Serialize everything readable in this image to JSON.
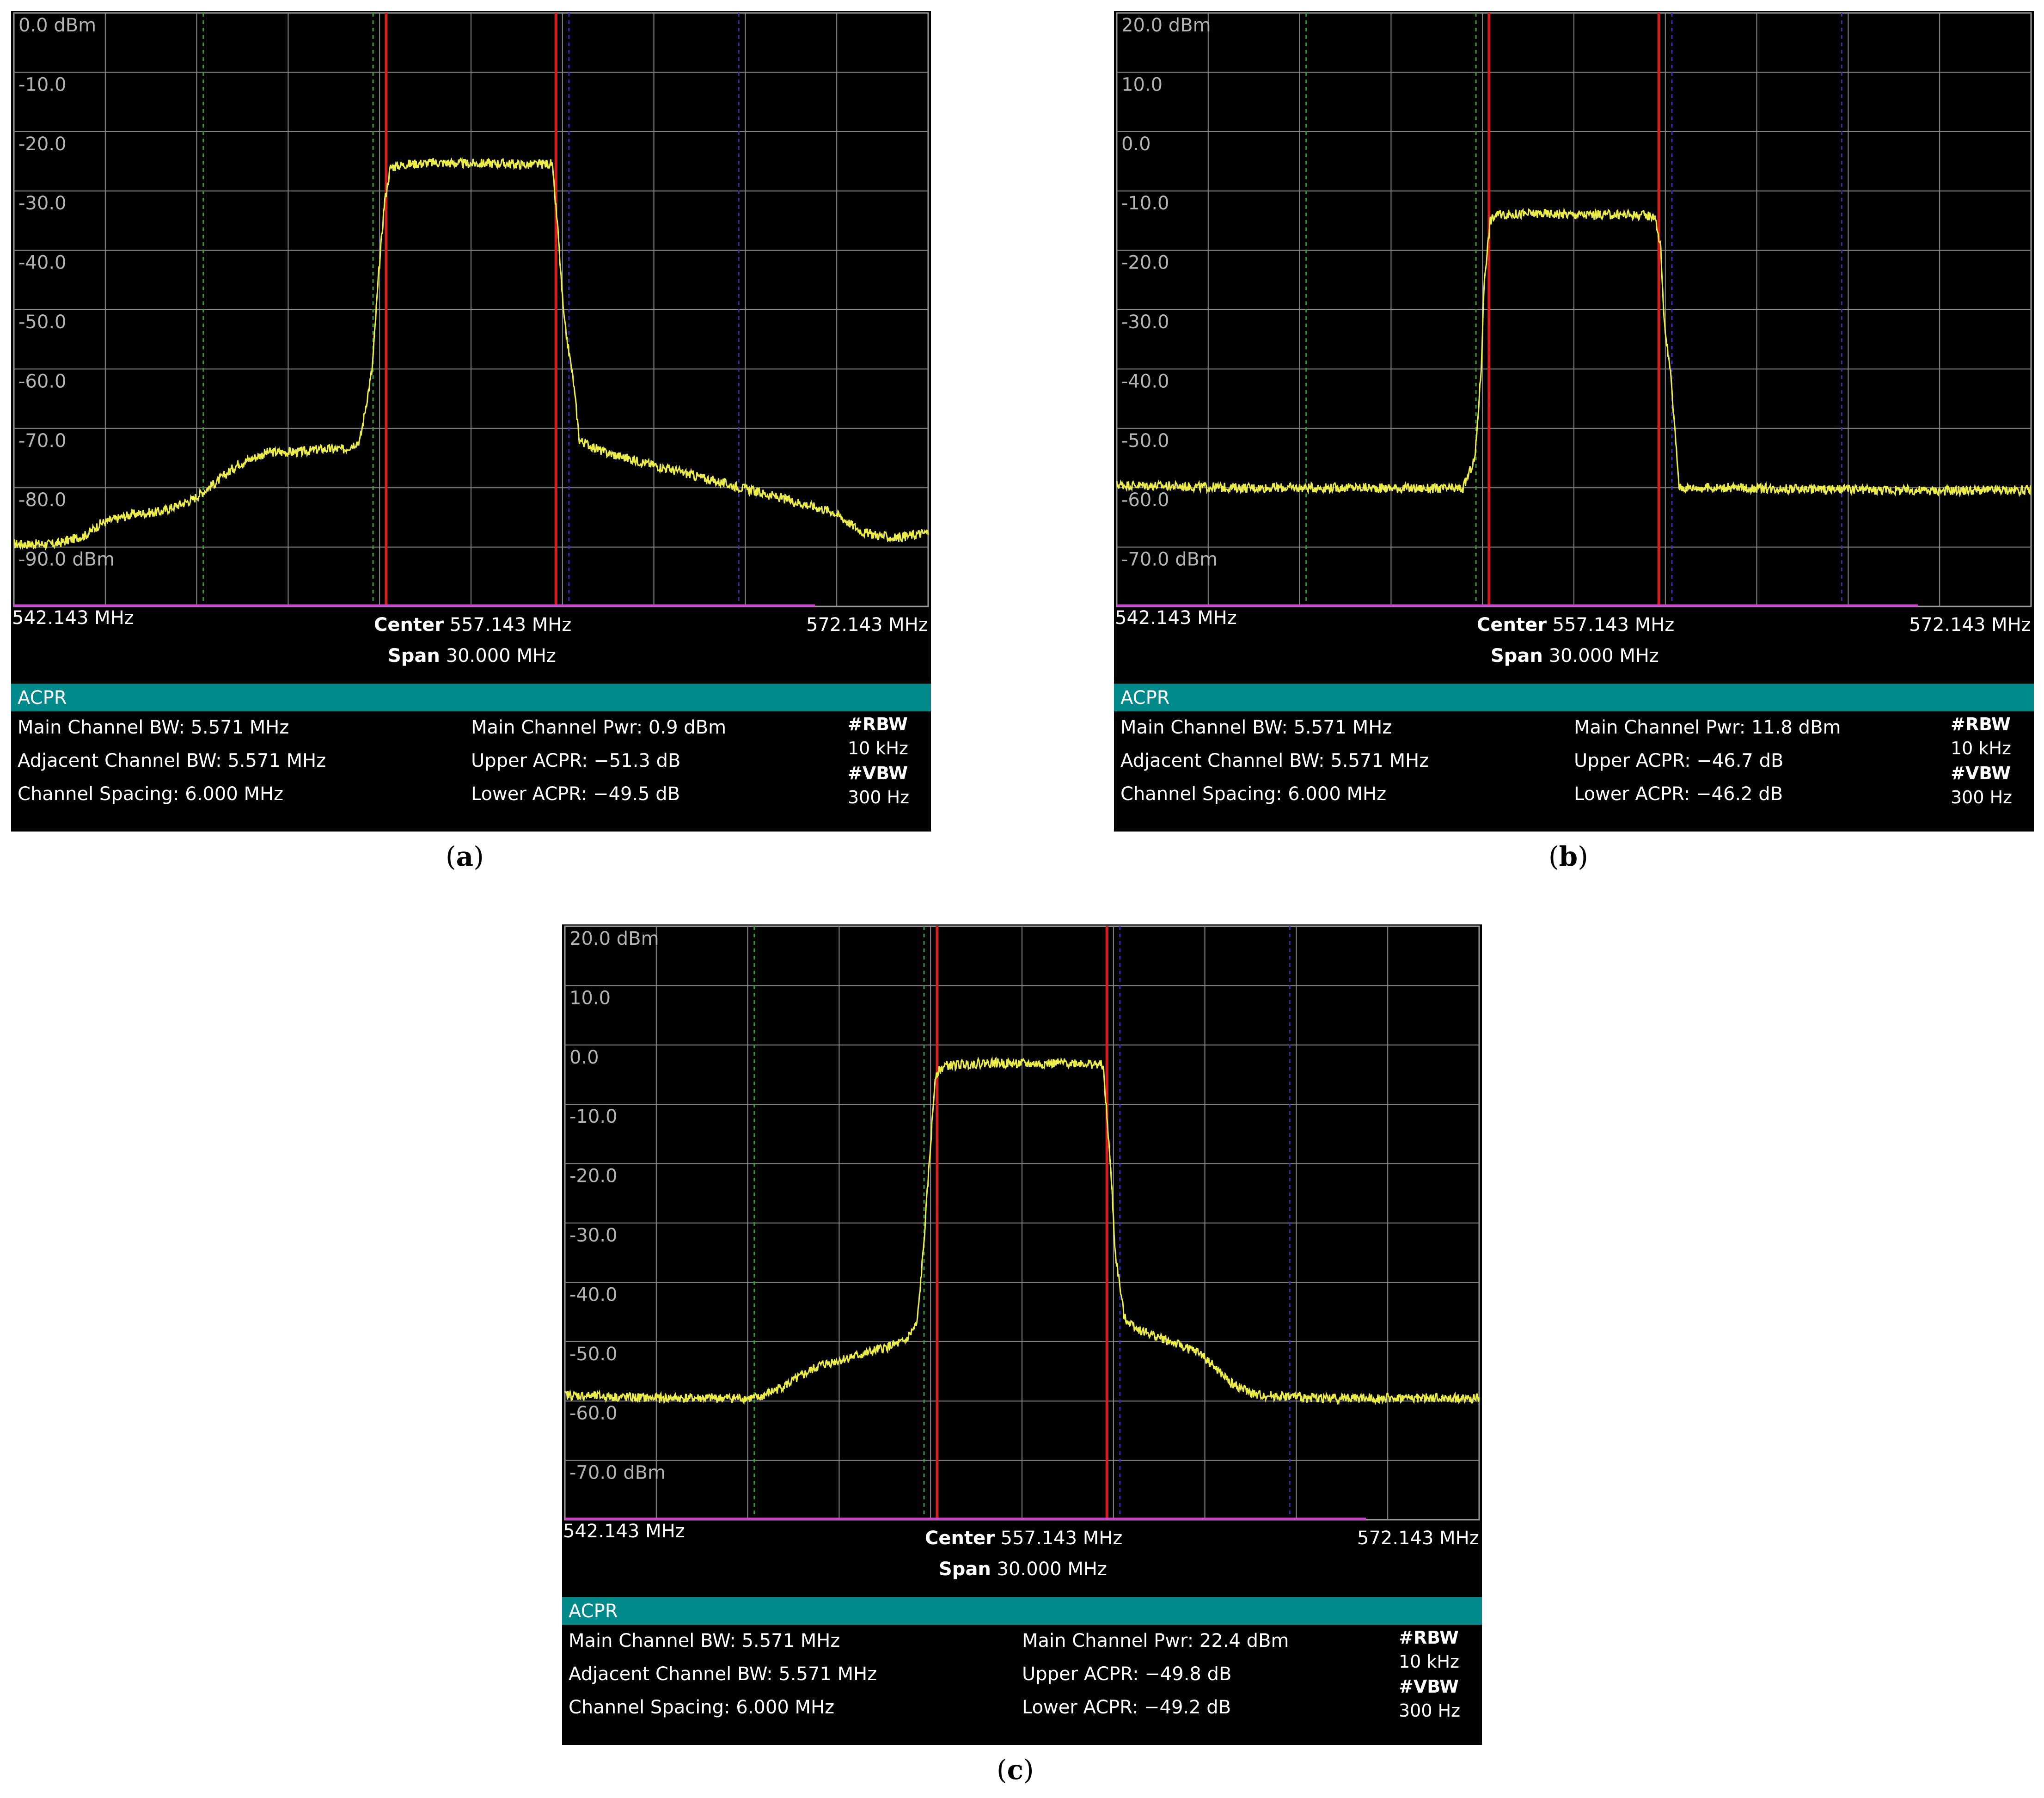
{
  "chart_data": [
    {
      "id": "a",
      "type": "line",
      "caption": "a",
      "ylabels": [
        "0.0 dBm",
        "-10.0",
        "-20.0",
        "-30.0",
        "-40.0",
        "-50.0",
        "-60.0",
        "-70.0",
        "-80.0",
        "-90.0 dBm"
      ],
      "ytop": 0,
      "ybottom": -100,
      "xlim": [
        542.143,
        572.143
      ],
      "start_label": "542.143 MHz",
      "stop_label": "572.143 MHz",
      "center_key": "Center",
      "center_val": "557.143 MHz",
      "span_key": "Span",
      "span_val": "30.000 MHz",
      "trace": [
        [
          542.143,
          -89.5
        ],
        [
          543.5,
          -89.5
        ],
        [
          544.5,
          -88
        ],
        [
          545,
          -86
        ],
        [
          546,
          -84.5
        ],
        [
          547,
          -84
        ],
        [
          548,
          -82
        ],
        [
          548.8,
          -79
        ],
        [
          549.5,
          -76
        ],
        [
          550.5,
          -74
        ],
        [
          551.5,
          -74
        ],
        [
          552.2,
          -73.5
        ],
        [
          553,
          -73.5
        ],
        [
          553.5,
          -72
        ],
        [
          553.9,
          -60
        ],
        [
          554.1,
          -45
        ],
        [
          554.3,
          -32
        ],
        [
          554.5,
          -26
        ],
        [
          555,
          -25.5
        ],
        [
          556,
          -25.2
        ],
        [
          557,
          -25.4
        ],
        [
          558,
          -25.3
        ],
        [
          559,
          -25.6
        ],
        [
          559.8,
          -25.4
        ],
        [
          560.0,
          -37
        ],
        [
          560.1,
          -45
        ],
        [
          560.2,
          -52
        ],
        [
          560.5,
          -62
        ],
        [
          560.7,
          -72
        ],
        [
          561.5,
          -74
        ],
        [
          563,
          -76
        ],
        [
          564.5,
          -78
        ],
        [
          566,
          -80
        ],
        [
          567.5,
          -82
        ],
        [
          569,
          -84
        ],
        [
          570,
          -87.5
        ],
        [
          571,
          -88.5
        ],
        [
          572.143,
          -87.5
        ]
      ],
      "acpr_title": "ACPR",
      "main_bw": "Main Channel BW: 5.571 MHz",
      "adj_bw": "Adjacent Channel BW: 5.571 MHz",
      "spacing": "Channel Spacing: 6.000 MHz",
      "main_pwr": "Main Channel Pwr: 0.9 dBm",
      "upper_acpr": "Upper ACPR: −51.3 dB",
      "lower_acpr": "Lower ACPR: −49.5 dB",
      "rbw_label": "#RBW",
      "rbw_val": "10 kHz",
      "vbw_label": "#VBW",
      "vbw_val": "300 Hz"
    },
    {
      "id": "b",
      "type": "line",
      "caption": "b",
      "ylabels": [
        "20.0 dBm",
        "10.0",
        "0.0",
        "-10.0",
        "-20.0",
        "-30.0",
        "-40.0",
        "-50.0",
        "-60.0",
        "-70.0 dBm"
      ],
      "ytop": 20,
      "ybottom": -80,
      "xlim": [
        542.143,
        572.143
      ],
      "start_label": "542.143 MHz",
      "stop_label": "572.143 MHz",
      "center_key": "Center",
      "center_val": "557.143 MHz",
      "span_key": "Span",
      "span_val": "30.000 MHz",
      "trace": [
        [
          542.143,
          -59.5
        ],
        [
          546,
          -60
        ],
        [
          550,
          -60
        ],
        [
          553.5,
          -60.2
        ],
        [
          553.9,
          -55
        ],
        [
          554.1,
          -40
        ],
        [
          554.2,
          -25
        ],
        [
          554.4,
          -15
        ],
        [
          554.6,
          -14
        ],
        [
          556,
          -13.8
        ],
        [
          557.5,
          -14
        ],
        [
          559,
          -14
        ],
        [
          559.8,
          -14.2
        ],
        [
          560.0,
          -20
        ],
        [
          560.1,
          -32
        ],
        [
          560.3,
          -40
        ],
        [
          560.45,
          -50
        ],
        [
          560.6,
          -60
        ],
        [
          562,
          -60
        ],
        [
          566,
          -60.3
        ],
        [
          569,
          -60.5
        ],
        [
          572.143,
          -60.4
        ]
      ],
      "acpr_title": "ACPR",
      "main_bw": "Main Channel BW: 5.571 MHz",
      "adj_bw": "Adjacent Channel BW: 5.571 MHz",
      "spacing": "Channel Spacing: 6.000 MHz",
      "main_pwr": "Main Channel Pwr: 11.8 dBm",
      "upper_acpr": "Upper ACPR: −46.7 dB",
      "lower_acpr": "Lower ACPR: −46.2 dB",
      "rbw_label": "#RBW",
      "rbw_val": "10 kHz",
      "vbw_label": "#VBW",
      "vbw_val": "300 Hz"
    },
    {
      "id": "c",
      "type": "line",
      "caption": "c",
      "ylabels": [
        "20.0 dBm",
        "10.0",
        "0.0",
        "-10.0",
        "-20.0",
        "-30.0",
        "-40.0",
        "-50.0",
        "-60.0",
        "-70.0 dBm"
      ],
      "ytop": 20,
      "ybottom": -80,
      "xlim": [
        542.143,
        572.143
      ],
      "start_label": "542.143 MHz",
      "stop_label": "572.143 MHz",
      "center_key": "Center",
      "center_val": "557.143 MHz",
      "span_key": "Span",
      "span_val": "30.000 MHz",
      "trace": [
        [
          542.143,
          -59
        ],
        [
          545,
          -59.5
        ],
        [
          548.5,
          -59.5
        ],
        [
          549.5,
          -57
        ],
        [
          550.5,
          -54
        ],
        [
          552,
          -52
        ],
        [
          553.3,
          -50
        ],
        [
          553.7,
          -47
        ],
        [
          553.9,
          -35
        ],
        [
          554.1,
          -20
        ],
        [
          554.3,
          -5
        ],
        [
          554.6,
          -3.5
        ],
        [
          556,
          -3
        ],
        [
          557.5,
          -3.2
        ],
        [
          559,
          -3
        ],
        [
          559.8,
          -3.4
        ],
        [
          560.0,
          -17
        ],
        [
          560.1,
          -25
        ],
        [
          560.2,
          -35
        ],
        [
          560.5,
          -46
        ],
        [
          561,
          -48
        ],
        [
          562,
          -50
        ],
        [
          563,
          -52
        ],
        [
          564,
          -57
        ],
        [
          564.8,
          -59
        ],
        [
          567,
          -59.5
        ],
        [
          570,
          -59.5
        ],
        [
          572.143,
          -59.6
        ]
      ],
      "acpr_title": "ACPR",
      "main_bw": "Main Channel BW: 5.571 MHz",
      "adj_bw": "Adjacent Channel BW: 5.571 MHz",
      "spacing": "Channel Spacing: 6.000 MHz",
      "main_pwr": "Main Channel Pwr: 22.4 dBm",
      "upper_acpr": "Upper ACPR: −49.8 dB",
      "lower_acpr": "Lower ACPR: −49.2 dB",
      "rbw_label": "#RBW",
      "rbw_val": "10 kHz",
      "vbw_label": "#VBW",
      "vbw_val": "300 Hz"
    }
  ]
}
